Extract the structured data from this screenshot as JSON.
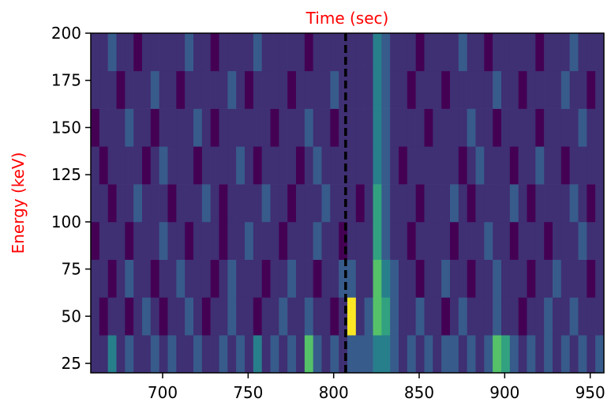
{
  "chart_data": {
    "type": "heatmap",
    "title": "Time (sec)",
    "ylabel": "Energy (keV)",
    "label_color": "red",
    "xlim": [
      658,
      958
    ],
    "ylim": [
      20,
      200
    ],
    "xticks": [
      700,
      750,
      800,
      850,
      900,
      950
    ],
    "yticks": [
      25,
      50,
      75,
      100,
      125,
      150,
      175,
      200
    ],
    "vline": {
      "x": 807,
      "color": "#000000",
      "style": "dashed"
    },
    "x_edges": [
      658,
      663,
      668,
      673,
      678,
      683,
      688,
      693,
      698,
      703,
      708,
      713,
      718,
      723,
      728,
      733,
      738,
      743,
      748,
      753,
      758,
      763,
      768,
      773,
      778,
      783,
      788,
      793,
      798,
      803,
      808,
      813,
      818,
      823,
      828,
      833,
      838,
      843,
      848,
      853,
      858,
      863,
      868,
      873,
      878,
      883,
      888,
      893,
      898,
      903,
      908,
      913,
      918,
      923,
      928,
      933,
      938,
      943,
      948,
      953,
      958
    ],
    "y_edges": [
      20,
      40,
      60,
      80,
      100,
      120,
      140,
      160,
      180,
      200
    ],
    "values": [
      [
        2,
        2,
        4,
        2,
        3,
        2,
        2,
        3,
        2,
        3,
        2,
        2,
        3,
        2,
        2,
        3,
        2,
        3,
        2,
        4,
        2,
        3,
        2,
        3,
        2,
        6,
        3,
        2,
        3,
        2,
        3,
        3,
        3,
        4,
        4,
        3,
        2,
        3,
        2,
        3,
        2,
        3,
        3,
        2,
        3,
        2,
        3,
        6,
        5,
        3,
        2,
        3,
        2,
        3,
        2,
        3,
        2,
        3,
        2,
        3
      ],
      [
        2,
        1,
        2,
        2,
        1,
        2,
        3,
        2,
        1,
        2,
        2,
        3,
        2,
        1,
        2,
        2,
        3,
        2,
        2,
        1,
        2,
        2,
        3,
        2,
        2,
        3,
        2,
        2,
        1,
        2,
        8,
        2,
        3,
        6,
        5,
        3,
        2,
        2,
        3,
        2,
        2,
        1,
        2,
        3,
        2,
        2,
        2,
        3,
        2,
        2,
        1,
        2,
        2,
        3,
        2,
        2,
        3,
        2,
        2,
        2
      ],
      [
        2,
        2,
        1,
        2,
        3,
        2,
        2,
        1,
        2,
        2,
        3,
        2,
        2,
        2,
        1,
        2,
        3,
        2,
        2,
        2,
        1,
        2,
        2,
        3,
        2,
        2,
        1,
        2,
        2,
        3,
        3,
        2,
        2,
        6,
        4,
        3,
        2,
        2,
        1,
        2,
        2,
        3,
        2,
        2,
        1,
        2,
        2,
        3,
        2,
        2,
        2,
        1,
        2,
        2,
        3,
        2,
        2,
        2,
        1,
        2
      ],
      [
        1,
        2,
        2,
        2,
        1,
        2,
        2,
        2,
        3,
        2,
        2,
        1,
        2,
        2,
        2,
        1,
        2,
        2,
        3,
        2,
        2,
        2,
        1,
        2,
        2,
        2,
        3,
        2,
        2,
        1,
        2,
        2,
        2,
        5,
        3,
        2,
        2,
        1,
        2,
        2,
        2,
        2,
        1,
        2,
        2,
        2,
        3,
        2,
        2,
        1,
        2,
        2,
        2,
        1,
        2,
        2,
        2,
        3,
        2,
        2
      ],
      [
        2,
        2,
        1,
        2,
        2,
        3,
        2,
        2,
        2,
        1,
        2,
        2,
        2,
        3,
        2,
        1,
        2,
        2,
        2,
        2,
        3,
        2,
        2,
        1,
        2,
        2,
        2,
        3,
        2,
        2,
        2,
        1,
        2,
        5,
        3,
        2,
        2,
        2,
        1,
        2,
        2,
        2,
        3,
        2,
        1,
        2,
        2,
        2,
        2,
        3,
        2,
        1,
        2,
        2,
        2,
        2,
        3,
        2,
        1,
        2
      ],
      [
        2,
        1,
        2,
        2,
        2,
        2,
        1,
        2,
        3,
        2,
        2,
        2,
        1,
        2,
        2,
        2,
        2,
        3,
        2,
        1,
        2,
        2,
        2,
        2,
        1,
        2,
        3,
        2,
        2,
        2,
        2,
        2,
        2,
        4,
        3,
        2,
        1,
        2,
        2,
        2,
        2,
        2,
        2,
        1,
        2,
        3,
        2,
        2,
        2,
        1,
        2,
        2,
        3,
        2,
        2,
        1,
        2,
        2,
        2,
        2
      ],
      [
        1,
        2,
        2,
        2,
        3,
        2,
        2,
        1,
        2,
        2,
        2,
        2,
        3,
        2,
        1,
        2,
        2,
        2,
        2,
        2,
        2,
        1,
        2,
        2,
        2,
        3,
        2,
        2,
        1,
        2,
        2,
        2,
        2,
        4,
        3,
        2,
        2,
        2,
        2,
        1,
        2,
        2,
        2,
        2,
        3,
        2,
        2,
        1,
        2,
        2,
        2,
        2,
        1,
        2,
        2,
        2,
        2,
        3,
        2,
        2
      ],
      [
        2,
        2,
        2,
        1,
        2,
        2,
        2,
        3,
        2,
        2,
        1,
        2,
        2,
        2,
        2,
        2,
        3,
        2,
        1,
        2,
        2,
        2,
        2,
        1,
        2,
        2,
        2,
        2,
        3,
        2,
        2,
        2,
        2,
        4,
        3,
        2,
        2,
        1,
        2,
        2,
        2,
        1,
        2,
        2,
        2,
        2,
        2,
        3,
        2,
        2,
        1,
        2,
        2,
        2,
        2,
        3,
        2,
        2,
        1,
        2
      ],
      [
        2,
        2,
        3,
        2,
        2,
        1,
        2,
        2,
        2,
        2,
        2,
        3,
        2,
        2,
        1,
        2,
        2,
        2,
        2,
        3,
        2,
        2,
        2,
        2,
        2,
        1,
        2,
        2,
        2,
        2,
        2,
        2,
        2,
        4,
        3,
        2,
        2,
        2,
        1,
        2,
        2,
        2,
        2,
        3,
        2,
        2,
        1,
        2,
        2,
        2,
        2,
        2,
        1,
        2,
        2,
        2,
        3,
        2,
        2,
        2
      ]
    ]
  }
}
